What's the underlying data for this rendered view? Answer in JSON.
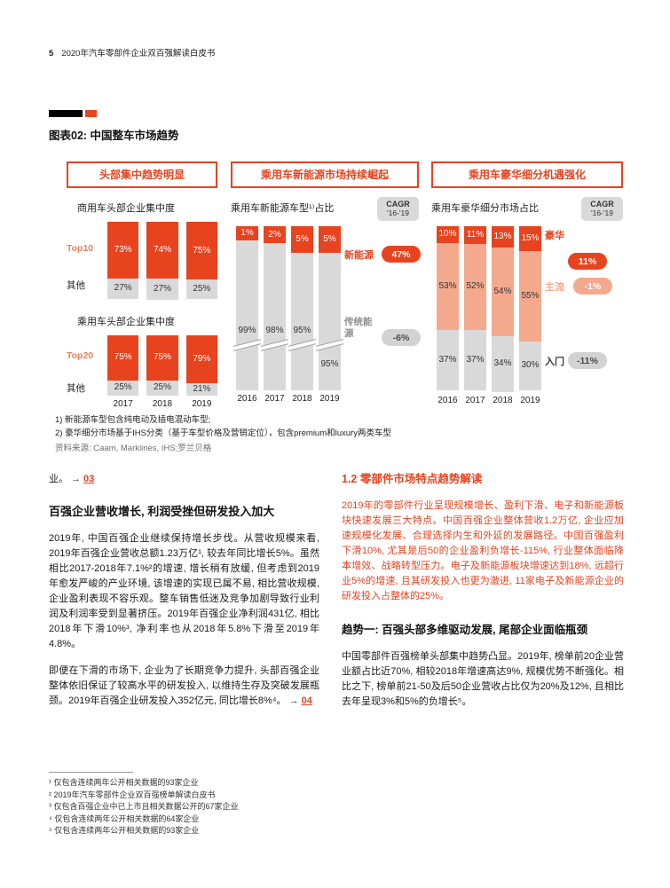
{
  "page": {
    "number": "5",
    "doc_title": "2020年汽车零部件企业双百强解读白皮书"
  },
  "figure": {
    "title": "图表02: 中国整车市场趋势",
    "panel_headers": [
      "头部集中趋势明显",
      "乘用车新能源市场持续崛起",
      "乘用车豪华细分机遇强化"
    ],
    "footnote1": "1) 新能源车型包含纯电动及插电混动车型;",
    "footnote2": "2) 豪华细分市场基于IHS分类（基于车型价格及营销定位），包含premium和luxury两类车型",
    "source": "资料来源: Caam, Marklines, IHS;罗兰贝格"
  },
  "chart_data": [
    {
      "type": "bar",
      "stacked": true,
      "title": "商用车头部企业集中度",
      "categories": [
        "2017",
        "2018",
        "2019"
      ],
      "ylim": [
        0,
        100
      ],
      "series": [
        {
          "name": "Top10",
          "values": [
            73,
            74,
            75
          ],
          "color": "#e8431f",
          "label_color": "#ffffff"
        },
        {
          "name": "其他",
          "values": [
            27,
            27,
            25
          ],
          "color": "#d9d9d9",
          "label_color": "#333333"
        }
      ]
    },
    {
      "type": "bar",
      "stacked": true,
      "title": "乘用车头部企业集中度",
      "categories": [
        "2017",
        "2018",
        "2019"
      ],
      "ylim": [
        0,
        100
      ],
      "series": [
        {
          "name": "Top20",
          "values": [
            75,
            75,
            79
          ],
          "color": "#e8431f",
          "label_color": "#ffffff"
        },
        {
          "name": "其他",
          "values": [
            25,
            25,
            21
          ],
          "color": "#d9d9d9",
          "label_color": "#333333"
        }
      ]
    },
    {
      "type": "bar",
      "stacked": true,
      "axis_break": true,
      "title": "乘用车新能源车型¹⁾占比",
      "cagr_title": "CAGR",
      "cagr_period": "'16-'19",
      "categories": [
        "2016",
        "2017",
        "2018",
        "2019"
      ],
      "ylim": [
        0,
        100
      ],
      "series": [
        {
          "name": "新能源",
          "values": [
            1,
            2,
            5,
            5
          ],
          "cagr": "47%",
          "color": "#e8431f",
          "label_color": "#ffffff"
        },
        {
          "name": "传统能源",
          "values": [
            99,
            98,
            95,
            95
          ],
          "cagr": "-6%",
          "color": "#d9d9d9",
          "label_color": "#333333"
        }
      ]
    },
    {
      "type": "bar",
      "stacked": true,
      "title": "乘用车豪华细分市场占比",
      "cagr_title": "CAGR",
      "cagr_period": "'16-'19",
      "categories": [
        "2016",
        "2017",
        "2018",
        "2019"
      ],
      "ylim": [
        0,
        100
      ],
      "series": [
        {
          "name": "豪华",
          "values": [
            10,
            11,
            13,
            15
          ],
          "cagr": "11%",
          "color": "#e8431f",
          "label_color": "#ffffff"
        },
        {
          "name": "主流",
          "values": [
            53,
            52,
            54,
            55
          ],
          "cagr": "-1%",
          "color": "#f4a98c",
          "label_color": "#333333"
        },
        {
          "name": "入门",
          "values": [
            37,
            37,
            34,
            30
          ],
          "cagr": "-11%",
          "color": "#d9d9d9",
          "label_color": "#333333"
        }
      ]
    }
  ],
  "body": {
    "left": {
      "intro_text": "业。",
      "link03_arrow": "→",
      "link03": "03",
      "heading": "百强企业营收增长, 利润受挫但研发投入加大",
      "para1": "2019年, 中国百强企业继续保持增长步伐。从营收规模来看, 2019年百强企业营收总额1.23万亿¹, 较去年同比增长5%。虽然相比2017-2018年7.1%²的增速, 增长稍有放缓, 但考虑到2019年愈发严峻的产业环境, 该增速的实现已属不易, 相比营收规模, 企业盈利表现不容乐观。整车销售低迷及竞争加剧导致行业利润及利润率受到显著挤压。2019年百强企业净利润431亿, 相比2018年下滑10%³, 净利率也从2018年5.8%下滑至2019年4.8%。",
      "para2": "即便在下滑的市场下, 企业为了长期竞争力提升, 头部百强企业整体依旧保证了较高水平的研发投入, 以维持生存及突破发展瓶颈。2019年百强企业研发投入352亿元, 同比增长8%⁴。",
      "link04_arrow": "→",
      "link04": "04"
    },
    "right": {
      "section_heading": "1.2 零部件市场特点趋势解读",
      "lead_para": "2019年的零部件行业呈现规模增长、盈利下滑、电子和新能源板块快速发展三大特点。中国百强企业整体营收1.2万亿, 企业应加速规模化发展、合理选择内生和外延的发展路径。中国百强盈利下滑10%, 尤其是后50的企业盈利负增长-115%, 行业整体面临降本增效、战略转型压力。电子及新能源板块增速达到18%, 远超行业5%的增速, 且其研发投入也更为激进, 11家电子及新能源企业的研发投入占整体的25%。",
      "trend_heading": "趋势一: 百强头部多维驱动发展, 尾部企业面临瓶颈",
      "trend_para": "中国零部件百强榜单头部集中趋势凸显。2019年, 榜单前20企业营业额占比近70%, 相较2018年增速高达9%, 规模优势不断强化。相比之下, 榜单前21-50及后50企业营收占比仅为20%及12%, 且相比去年呈现3%和5%的负增长⁵。"
    }
  },
  "footer_notes": [
    "¹ 仅包含连续两年公开相关数据的93家企业",
    "² 2019年汽车零部件企业双百强榜单解读白皮书",
    "³ 仅包含百强企业中已上市且相关数据公开的67家企业",
    "⁴ 仅包含连续两年公开相关数据的64家企业",
    "⁵ 仅包含连续两年公开相关数据的93家企业"
  ],
  "colors": {
    "accent": "#e8431f",
    "salmon": "#f4a98c",
    "gray": "#d9d9d9",
    "pill_gray": "#d2d2d2",
    "top_label_orange": "#ef8059"
  }
}
